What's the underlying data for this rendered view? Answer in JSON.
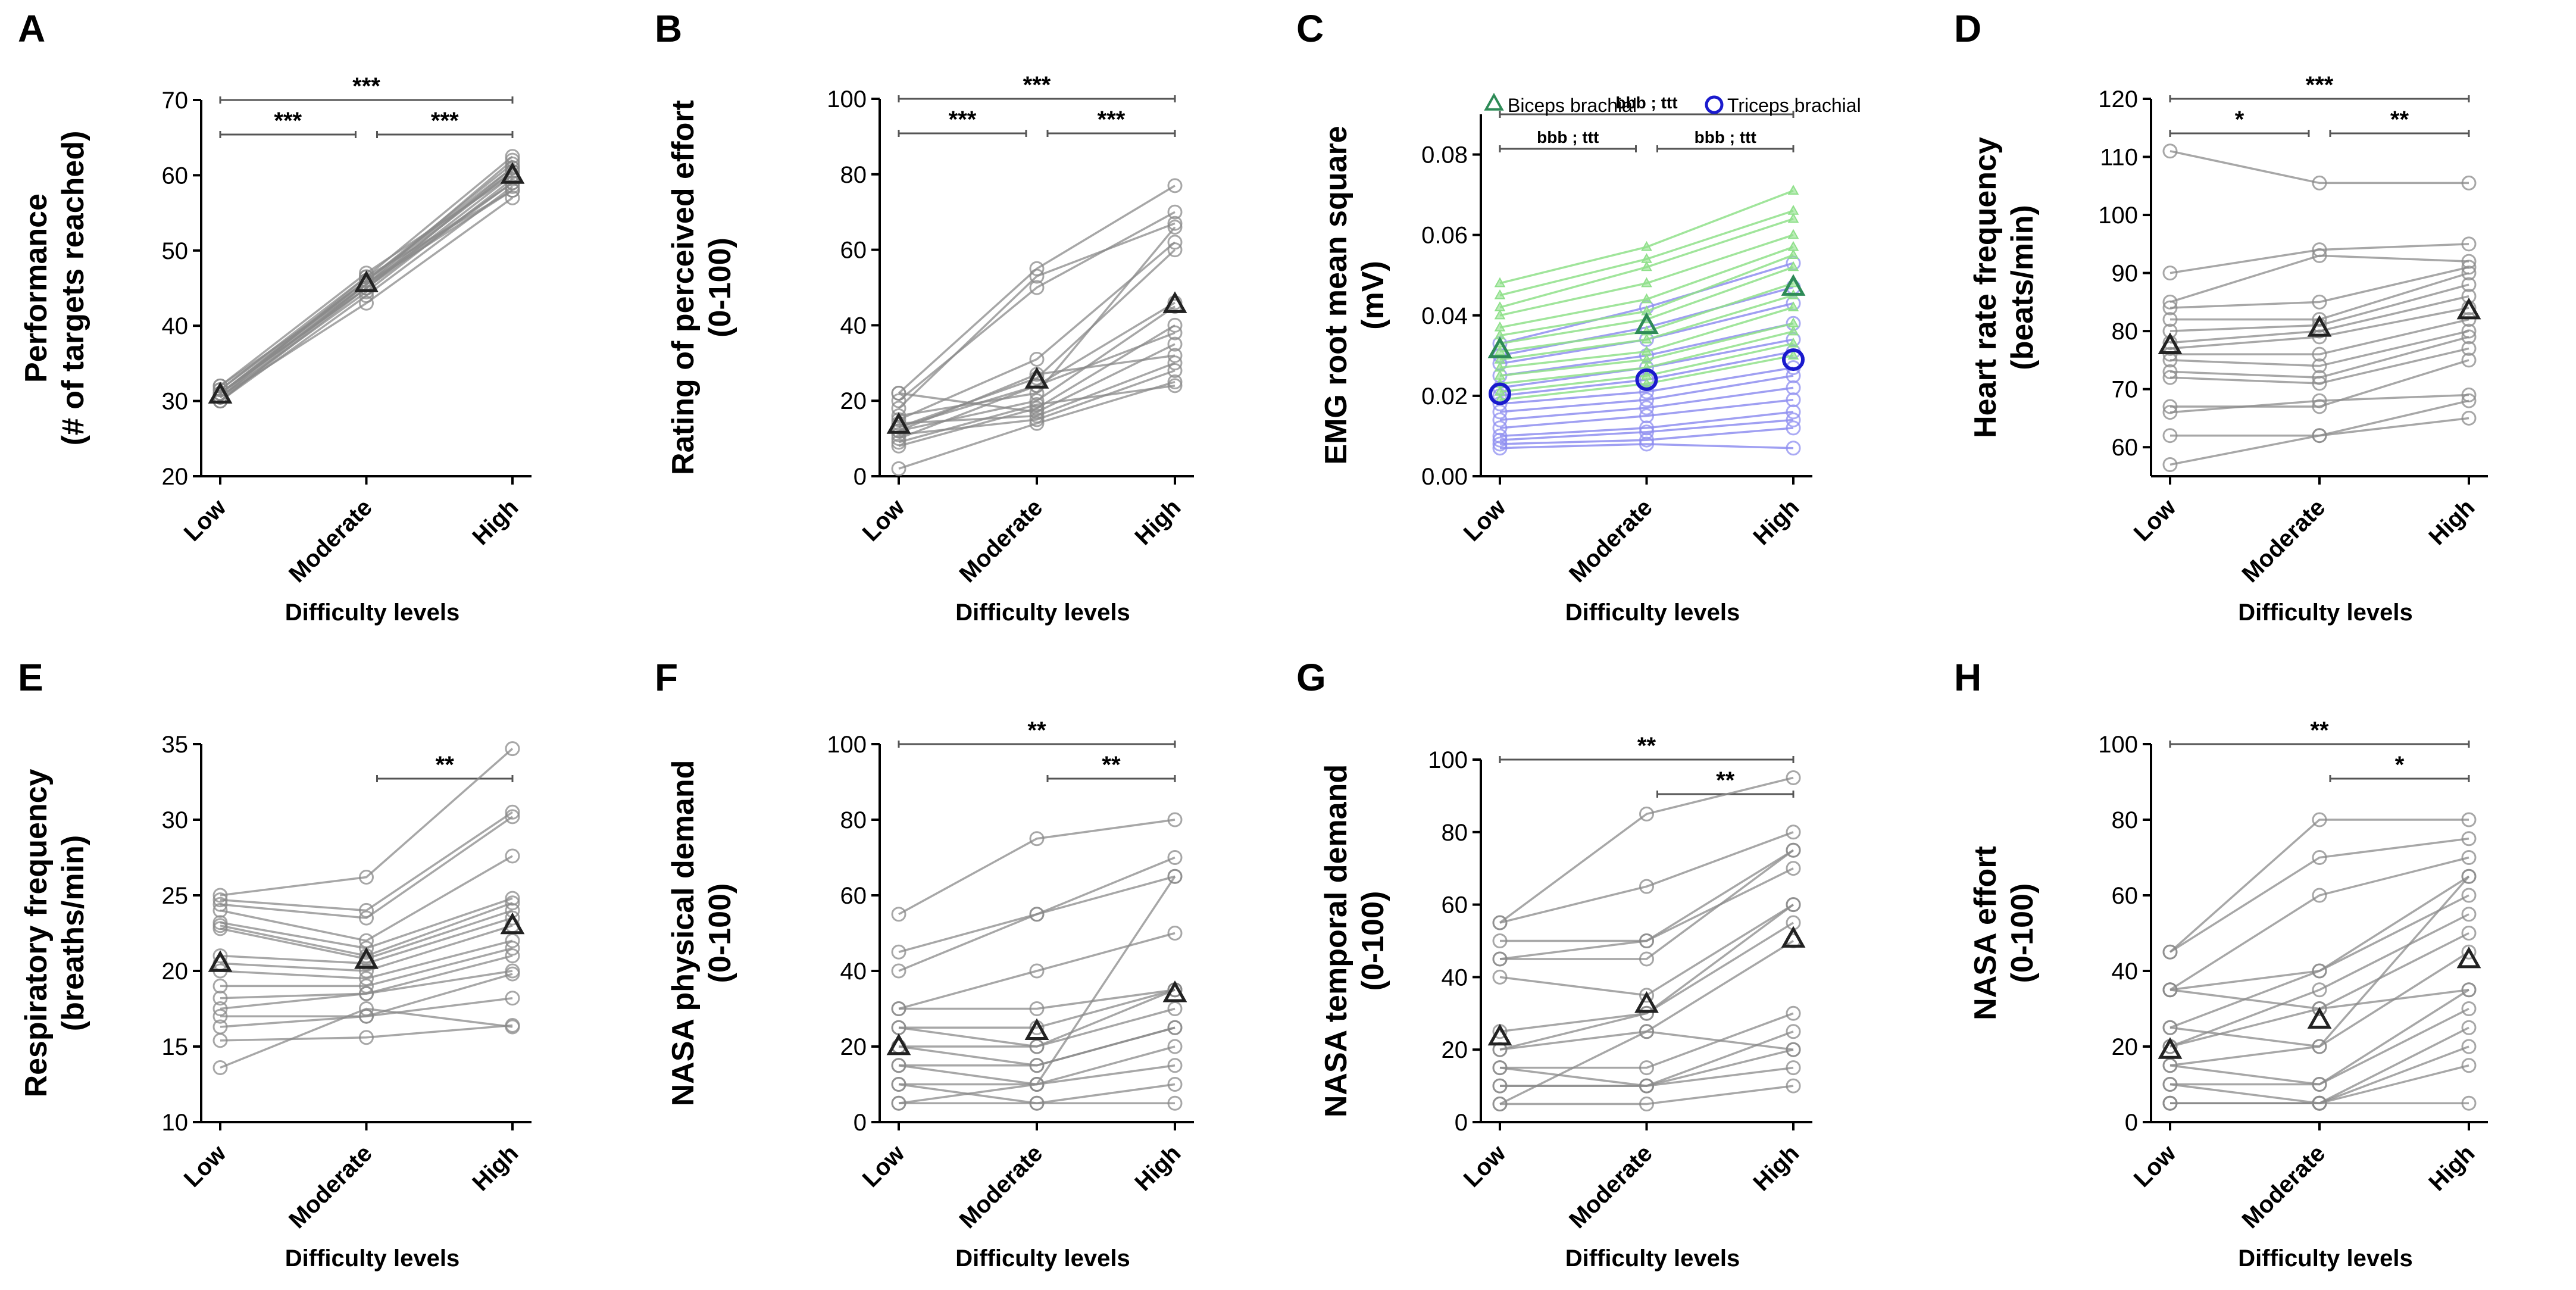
{
  "figure": {
    "xlabel": "Difficulty levels",
    "categories": [
      "Low",
      "Moderate",
      "High"
    ]
  },
  "chart_data": [
    {
      "panel": "A",
      "type": "line",
      "ylabel_lines": [
        "Performance",
        "(# of targets reached)"
      ],
      "ylim": [
        20,
        70
      ],
      "yticks": [
        20,
        30,
        40,
        50,
        60,
        70
      ],
      "tick_labels": [
        "20",
        "30",
        "40",
        "50",
        "60",
        "70"
      ],
      "categories": [
        "Low",
        "Moderate",
        "High"
      ],
      "subjects": [
        [
          30.5,
          46.5,
          62.5
        ],
        [
          31,
          46,
          61.5
        ],
        [
          31.5,
          46,
          61
        ],
        [
          30,
          45.5,
          60.5
        ],
        [
          31,
          45,
          60
        ],
        [
          32,
          47,
          60
        ],
        [
          30.5,
          44.5,
          59.5
        ],
        [
          31,
          45.5,
          59
        ],
        [
          30,
          44,
          58.5
        ],
        [
          31.5,
          46.5,
          58
        ],
        [
          30.5,
          43,
          57
        ],
        [
          31,
          45,
          61
        ],
        [
          32,
          45.5,
          62
        ],
        [
          30,
          45,
          59
        ],
        [
          31,
          46,
          60.5
        ],
        [
          30.5,
          45.5,
          58
        ]
      ],
      "mean": [
        30.8,
        45.6,
        60.0
      ],
      "significance": [
        {
          "label": "***",
          "from": 0,
          "to": 1,
          "level": 0
        },
        {
          "label": "***",
          "from": 1,
          "to": 2,
          "level": 0
        },
        {
          "label": "***",
          "from": 0,
          "to": 2,
          "level": 1
        }
      ]
    },
    {
      "panel": "B",
      "type": "line",
      "ylabel_lines": [
        "Rating of perceived effort",
        "(0-100)"
      ],
      "ylim": [
        0,
        100
      ],
      "yticks": [
        0,
        20,
        40,
        60,
        80,
        100
      ],
      "tick_labels": [
        "0",
        "20",
        "40",
        "60",
        "80",
        "100"
      ],
      "categories": [
        "Low",
        "Moderate",
        "High"
      ],
      "subjects": [
        [
          22,
          55,
          77
        ],
        [
          20,
          50,
          70
        ],
        [
          18,
          53,
          67
        ],
        [
          15,
          31,
          62
        ],
        [
          13,
          26,
          60
        ],
        [
          10,
          24,
          46
        ],
        [
          12,
          20,
          45
        ],
        [
          8,
          18,
          40
        ],
        [
          22,
          17,
          35
        ],
        [
          14,
          16,
          30
        ],
        [
          11,
          15,
          28
        ],
        [
          2,
          14,
          25
        ],
        [
          9,
          19,
          24
        ],
        [
          16,
          22,
          66
        ],
        [
          13,
          24,
          38
        ],
        [
          12,
          27,
          32
        ]
      ],
      "mean": [
        13.5,
        25.5,
        45.5
      ],
      "significance": [
        {
          "label": "***",
          "from": 0,
          "to": 1,
          "level": 0
        },
        {
          "label": "***",
          "from": 1,
          "to": 2,
          "level": 0
        },
        {
          "label": "***",
          "from": 0,
          "to": 2,
          "level": 1
        }
      ]
    },
    {
      "panel": "C",
      "type": "line",
      "ylabel_lines": [
        "EMG root mean square",
        "(mV)"
      ],
      "ylim": [
        0,
        0.09
      ],
      "yticks": [
        0,
        0.02,
        0.04,
        0.06,
        0.08
      ],
      "tick_labels": [
        "0.00",
        "0.02",
        "0.04",
        "0.06",
        "0.08"
      ],
      "categories": [
        "Low",
        "Moderate",
        "High"
      ],
      "legend": [
        "Biceps brachial",
        "Triceps brachial"
      ],
      "series": [
        {
          "name": "Biceps brachial",
          "color": "#2e8b57",
          "light_color": "#8fe08a",
          "subjects": [
            [
              0.048,
              0.057,
              0.071
            ],
            [
              0.045,
              0.054,
              0.066
            ],
            [
              0.042,
              0.052,
              0.064
            ],
            [
              0.04,
              0.048,
              0.06
            ],
            [
              0.037,
              0.044,
              0.057
            ],
            [
              0.035,
              0.041,
              0.055
            ],
            [
              0.033,
              0.039,
              0.052
            ],
            [
              0.031,
              0.036,
              0.048
            ],
            [
              0.029,
              0.034,
              0.045
            ],
            [
              0.027,
              0.031,
              0.042
            ],
            [
              0.025,
              0.029,
              0.038
            ],
            [
              0.023,
              0.027,
              0.036
            ],
            [
              0.021,
              0.025,
              0.033
            ],
            [
              0.019,
              0.023,
              0.03
            ]
          ],
          "mean": [
            0.0315,
            0.0375,
            0.047
          ]
        },
        {
          "name": "Triceps brachial",
          "color": "#1a1acd",
          "light_color": "#8e8ef0",
          "subjects": [
            [
              0.033,
              0.042,
              0.053
            ],
            [
              0.03,
              0.037,
              0.047
            ],
            [
              0.028,
              0.034,
              0.043
            ],
            [
              0.025,
              0.03,
              0.038
            ],
            [
              0.022,
              0.027,
              0.034
            ],
            [
              0.02,
              0.024,
              0.031
            ],
            [
              0.018,
              0.021,
              0.027
            ],
            [
              0.016,
              0.019,
              0.025
            ],
            [
              0.014,
              0.017,
              0.022
            ],
            [
              0.012,
              0.015,
              0.019
            ],
            [
              0.01,
              0.012,
              0.016
            ],
            [
              0.009,
              0.011,
              0.014
            ],
            [
              0.008,
              0.009,
              0.012
            ],
            [
              0.007,
              0.008,
              0.007
            ]
          ],
          "mean": [
            0.0205,
            0.024,
            0.029
          ]
        }
      ],
      "significance": [
        {
          "label": "bbb ; ttt",
          "from": 0,
          "to": 1,
          "level": 0
        },
        {
          "label": "bbb ; ttt",
          "from": 1,
          "to": 2,
          "level": 0
        },
        {
          "label": "bbb ; ttt",
          "from": 0,
          "to": 2,
          "level": 1
        }
      ]
    },
    {
      "panel": "D",
      "type": "line",
      "ylabel_lines": [
        "Heart rate frequency",
        "(beats/min)"
      ],
      "ylim": [
        55,
        120
      ],
      "yticks": [
        60,
        70,
        80,
        90,
        100,
        110,
        120
      ],
      "tick_labels": [
        "60",
        "70",
        "80",
        "90",
        "100",
        "110",
        "120"
      ],
      "categories": [
        "Low",
        "Moderate",
        "High"
      ],
      "subjects": [
        [
          111,
          105.5,
          105.5
        ],
        [
          90,
          94,
          95
        ],
        [
          85,
          93,
          92
        ],
        [
          84,
          85,
          91
        ],
        [
          82,
          82,
          90
        ],
        [
          80,
          81,
          88
        ],
        [
          78,
          80,
          86
        ],
        [
          77,
          79,
          84
        ],
        [
          76,
          76,
          82
        ],
        [
          75,
          74,
          80
        ],
        [
          73,
          72,
          79
        ],
        [
          72,
          71,
          77
        ],
        [
          67,
          67,
          75
        ],
        [
          66,
          68,
          69
        ],
        [
          62,
          62,
          65
        ],
        [
          57,
          62,
          68
        ]
      ],
      "mean": [
        77.5,
        80.5,
        83.5
      ],
      "significance": [
        {
          "label": "*",
          "from": 0,
          "to": 1,
          "level": 0
        },
        {
          "label": "**",
          "from": 1,
          "to": 2,
          "level": 0
        },
        {
          "label": "***",
          "from": 0,
          "to": 2,
          "level": 1
        }
      ]
    },
    {
      "panel": "E",
      "type": "line",
      "ylabel_lines": [
        "Respiratory frequency",
        "(breaths/min)"
      ],
      "ylim": [
        10,
        35
      ],
      "yticks": [
        10,
        15,
        20,
        25,
        30,
        35
      ],
      "tick_labels": [
        "10",
        "15",
        "20",
        "25",
        "30",
        "35"
      ],
      "categories": [
        "Low",
        "Moderate",
        "High"
      ],
      "subjects": [
        [
          25,
          26.2,
          34.7
        ],
        [
          24.7,
          24,
          30.5
        ],
        [
          24.4,
          23.5,
          30.2
        ],
        [
          24,
          22,
          27.6
        ],
        [
          23.2,
          21.5,
          24.8
        ],
        [
          23,
          21,
          24.5
        ],
        [
          22.8,
          20.8,
          24
        ],
        [
          21,
          20.5,
          23.5
        ],
        [
          20.5,
          20,
          23
        ],
        [
          20,
          19.5,
          22
        ],
        [
          19,
          19,
          21.5
        ],
        [
          18.2,
          18.5,
          21
        ],
        [
          17.5,
          18.5,
          20
        ],
        [
          17,
          17,
          19.8
        ],
        [
          16.3,
          17,
          18.2
        ],
        [
          15.4,
          15.6,
          16.4
        ],
        [
          13.6,
          17.5,
          16.3
        ]
      ],
      "mean": [
        20.5,
        20.7,
        23.0
      ],
      "significance": [
        {
          "label": "**",
          "from": 1,
          "to": 2,
          "level": 0
        }
      ]
    },
    {
      "panel": "F",
      "type": "line",
      "ylabel_lines": [
        "NASA physical demand",
        "(0-100)"
      ],
      "ylim": [
        0,
        100
      ],
      "yticks": [
        0,
        20,
        40,
        60,
        80,
        100
      ],
      "tick_labels": [
        "0",
        "20",
        "40",
        "60",
        "80",
        "100"
      ],
      "categories": [
        "Low",
        "Moderate",
        "High"
      ],
      "subjects": [
        [
          55,
          75,
          80
        ],
        [
          45,
          55,
          70
        ],
        [
          40,
          55,
          65
        ],
        [
          30,
          40,
          50
        ],
        [
          30,
          30,
          35
        ],
        [
          25,
          25,
          35
        ],
        [
          25,
          20,
          30
        ],
        [
          20,
          15,
          25
        ],
        [
          15,
          15,
          25
        ],
        [
          15,
          10,
          20
        ],
        [
          10,
          10,
          15
        ],
        [
          10,
          5,
          10
        ],
        [
          5,
          5,
          5
        ],
        [
          5,
          10,
          65
        ],
        [
          20,
          20,
          35
        ]
      ],
      "mean": [
        20,
        24,
        34
      ],
      "significance": [
        {
          "label": "**",
          "from": 1,
          "to": 2,
          "level": 0
        },
        {
          "label": "**",
          "from": 0,
          "to": 2,
          "level": 1
        }
      ]
    },
    {
      "panel": "G",
      "type": "line",
      "ylabel_lines": [
        "NASA temporal demand",
        "(0-100)"
      ],
      "ylim": [
        0,
        100
      ],
      "yticks": [
        0,
        20,
        40,
        60,
        80,
        100
      ],
      "tick_labels": [
        "0",
        "20",
        "40",
        "60",
        "80",
        "100"
      ],
      "categories": [
        "Low",
        "Moderate",
        "High"
      ],
      "subjects": [
        [
          55,
          85,
          95
        ],
        [
          55,
          65,
          80
        ],
        [
          50,
          50,
          75
        ],
        [
          45,
          45,
          75
        ],
        [
          45,
          50,
          70
        ],
        [
          40,
          35,
          60
        ],
        [
          25,
          30,
          55
        ],
        [
          20,
          25,
          50
        ],
        [
          15,
          15,
          30
        ],
        [
          15,
          10,
          25
        ],
        [
          10,
          10,
          20
        ],
        [
          10,
          10,
          15
        ],
        [
          5,
          5,
          10
        ],
        [
          5,
          25,
          20
        ],
        [
          20,
          30,
          60
        ]
      ],
      "mean": [
        23.5,
        32.5,
        50.5
      ],
      "significance": [
        {
          "label": "**",
          "from": 1,
          "to": 2,
          "level": 0
        },
        {
          "label": "**",
          "from": 0,
          "to": 2,
          "level": 1
        }
      ]
    },
    {
      "panel": "H",
      "type": "line",
      "ylabel_lines": [
        "NASA effort",
        "(0-100)"
      ],
      "ylim": [
        0,
        100
      ],
      "yticks": [
        0,
        20,
        40,
        60,
        80,
        100
      ],
      "tick_labels": [
        "0",
        "20",
        "40",
        "60",
        "80",
        "100"
      ],
      "categories": [
        "Low",
        "Moderate",
        "High"
      ],
      "subjects": [
        [
          45,
          80,
          80
        ],
        [
          45,
          70,
          75
        ],
        [
          35,
          60,
          70
        ],
        [
          35,
          40,
          65
        ],
        [
          25,
          40,
          60
        ],
        [
          20,
          35,
          55
        ],
        [
          20,
          30,
          50
        ],
        [
          15,
          20,
          45
        ],
        [
          15,
          10,
          35
        ],
        [
          10,
          10,
          30
        ],
        [
          10,
          5,
          25
        ],
        [
          5,
          5,
          20
        ],
        [
          5,
          5,
          15
        ],
        [
          25,
          20,
          65
        ],
        [
          35,
          30,
          35
        ],
        [
          5,
          5,
          5
        ]
      ],
      "mean": [
        19,
        27,
        43
      ],
      "significance": [
        {
          "label": "*",
          "from": 1,
          "to": 2,
          "level": 0
        },
        {
          "label": "**",
          "from": 0,
          "to": 2,
          "level": 1
        }
      ]
    }
  ]
}
